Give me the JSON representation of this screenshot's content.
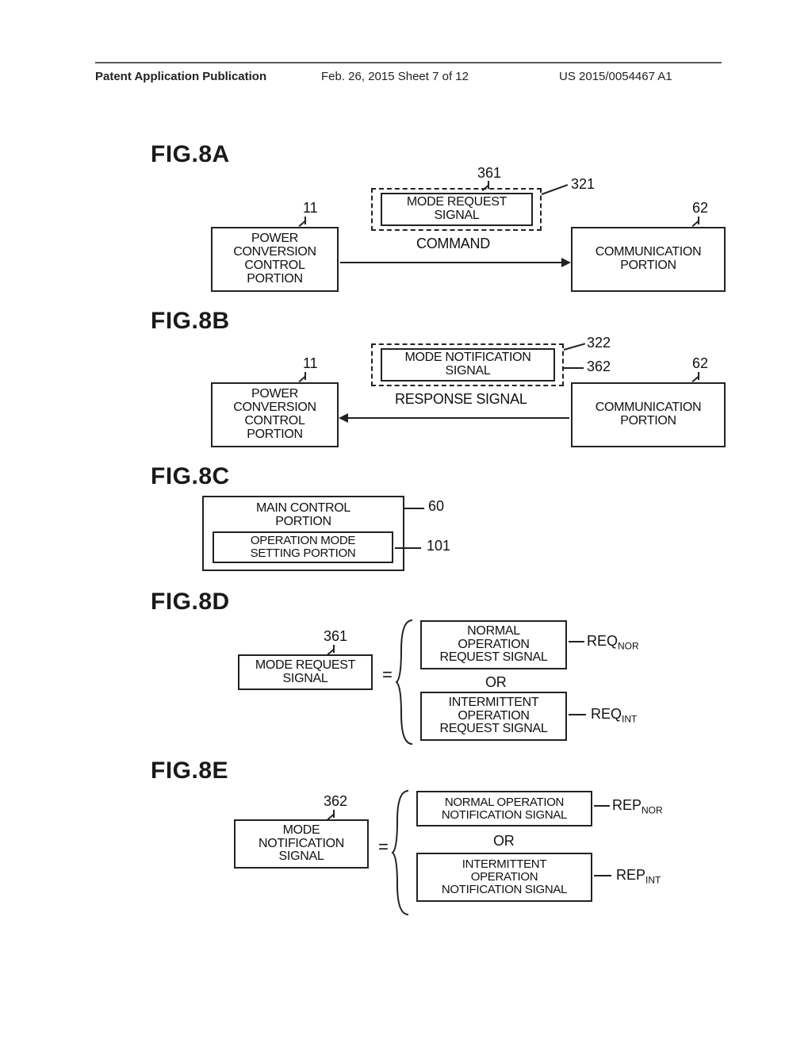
{
  "header": {
    "left": "Patent Application Publication",
    "mid": "Feb. 26, 2015   Sheet 7 of 12",
    "right": "US 2015/0054467 A1"
  },
  "figA": {
    "title": "FIG.8A",
    "ref11": "11",
    "ref361": "361",
    "ref321": "321",
    "ref62": "62",
    "powerBox": "POWER\nCONVERSION\nCONTROL\nPORTION",
    "modeReq": "MODE REQUEST\nSIGNAL",
    "command": "COMMAND",
    "comm": "COMMUNICATION\nPORTION"
  },
  "figB": {
    "title": "FIG.8B",
    "ref11": "11",
    "ref322": "322",
    "ref362": "362",
    "ref62": "62",
    "powerBox": "POWER\nCONVERSION\nCONTROL\nPORTION",
    "modeNotif": "MODE NOTIFICATION\nSIGNAL",
    "response": "RESPONSE SIGNAL",
    "comm": "COMMUNICATION\nPORTION"
  },
  "figC": {
    "title": "FIG.8C",
    "ref60": "60",
    "ref101": "101",
    "main": "MAIN CONTROL\nPORTION",
    "opmode": "OPERATION MODE\nSETTING PORTION"
  },
  "figD": {
    "title": "FIG.8D",
    "ref361": "361",
    "modeReq": "MODE REQUEST\nSIGNAL",
    "normal": "NORMAL\nOPERATION\nREQUEST SIGNAL",
    "or": "OR",
    "intermit": "INTERMITTENT\nOPERATION\nREQUEST SIGNAL",
    "reqNor": "REQ",
    "reqNorSub": "NOR",
    "reqInt": "REQ",
    "reqIntSub": "INT"
  },
  "figE": {
    "title": "FIG.8E",
    "ref362": "362",
    "modeNotif": "MODE\nNOTIFICATION\nSIGNAL",
    "normal": "NORMAL OPERATION\nNOTIFICATION SIGNAL",
    "or": "OR",
    "intermit": "INTERMITTENT\nOPERATION\nNOTIFICATION SIGNAL",
    "repNor": "REP",
    "repNorSub": "NOR",
    "repInt": "REP",
    "repIntSub": "INT"
  }
}
